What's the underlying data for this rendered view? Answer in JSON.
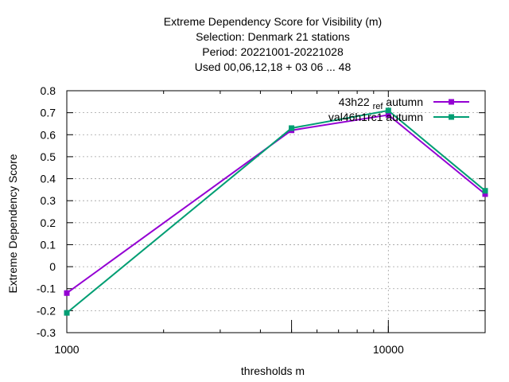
{
  "chart_data": {
    "type": "line",
    "title_lines": [
      "Extreme Dependency Score  for Visibility (m)",
      "Selection: Denmark     21 stations",
      "Period: 20221001-20221028",
      "Used  00,06,12,18  + 03 06 ... 48"
    ],
    "xlabel": "thresholds m",
    "ylabel": "Extreme Dependency Score",
    "x_scale": "log",
    "xlim": [
      1000,
      20000
    ],
    "ylim": [
      -0.3,
      0.8
    ],
    "x_tick_labels": [
      {
        "value": 1000,
        "label": "1000"
      },
      {
        "value": 10000,
        "label": "10000"
      }
    ],
    "y_ticks": [
      -0.3,
      -0.2,
      -0.1,
      0,
      0.1,
      0.2,
      0.3,
      0.4,
      0.5,
      0.6,
      0.7,
      0.8
    ],
    "y_tick_labels": [
      "-0.3",
      "-0.2",
      "-0.1",
      "0",
      "0.1",
      "0.2",
      "0.3",
      "0.4",
      "0.5",
      "0.6",
      "0.7",
      "0.8"
    ],
    "grid": true,
    "legend_position": "top-right",
    "series": [
      {
        "name": "43h22 ref autumn",
        "legend_main": "43h22",
        "legend_sub": "ref",
        "legend_suffix": "autumn",
        "color": "#9400d3",
        "x": [
          1000,
          5000,
          10000,
          20000
        ],
        "y": [
          -0.12,
          0.62,
          0.69,
          0.33
        ]
      },
      {
        "name": "val46h1rc1 autumn",
        "legend_main": "val46h1rc1",
        "legend_sub": "",
        "legend_suffix": "autumn",
        "color": "#009e73",
        "x": [
          1000,
          5000,
          10000,
          20000
        ],
        "y": [
          -0.21,
          0.63,
          0.71,
          0.345
        ]
      }
    ]
  }
}
